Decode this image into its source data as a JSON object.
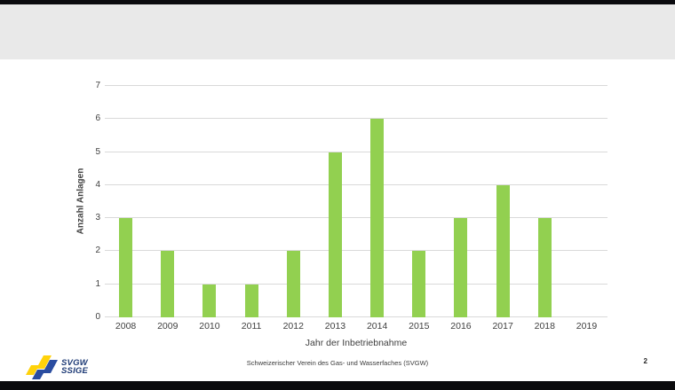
{
  "theme": {
    "background_color": "#FFFFFF",
    "top_bar_color": "#0B0B0E",
    "header_band_color": "#E9E9E9",
    "bottom_bar_color": "#0B0B0E",
    "text_color": "#404040"
  },
  "chart_data": {
    "type": "bar",
    "title": "",
    "categories": [
      "2008",
      "2009",
      "2010",
      "2011",
      "2012",
      "2013",
      "2014",
      "2015",
      "2016",
      "2017",
      "2018",
      "2019"
    ],
    "values": [
      3,
      2,
      1,
      1,
      2,
      5,
      6,
      2,
      3,
      4,
      3,
      0
    ],
    "xlabel": "Jahr der Inbetriebnahme",
    "ylabel": "Anzahl Anlagen",
    "ylim": [
      0,
      7
    ],
    "yticks": [
      0,
      1,
      2,
      3,
      4,
      5,
      6,
      7
    ],
    "bar_color": "#92D050",
    "gridline_color": "#D9D9D9",
    "grid": true,
    "legend": "none"
  },
  "logo": {
    "line1": "SVGW",
    "line2": "SSIGE",
    "yellow": "#FFD20A",
    "blue": "#2A4DA0",
    "text_color": "#1E3B76"
  },
  "footer": {
    "text": "Schweizerischer Verein des Gas- und Wasserfaches (SVGW)",
    "page_number": "2"
  }
}
